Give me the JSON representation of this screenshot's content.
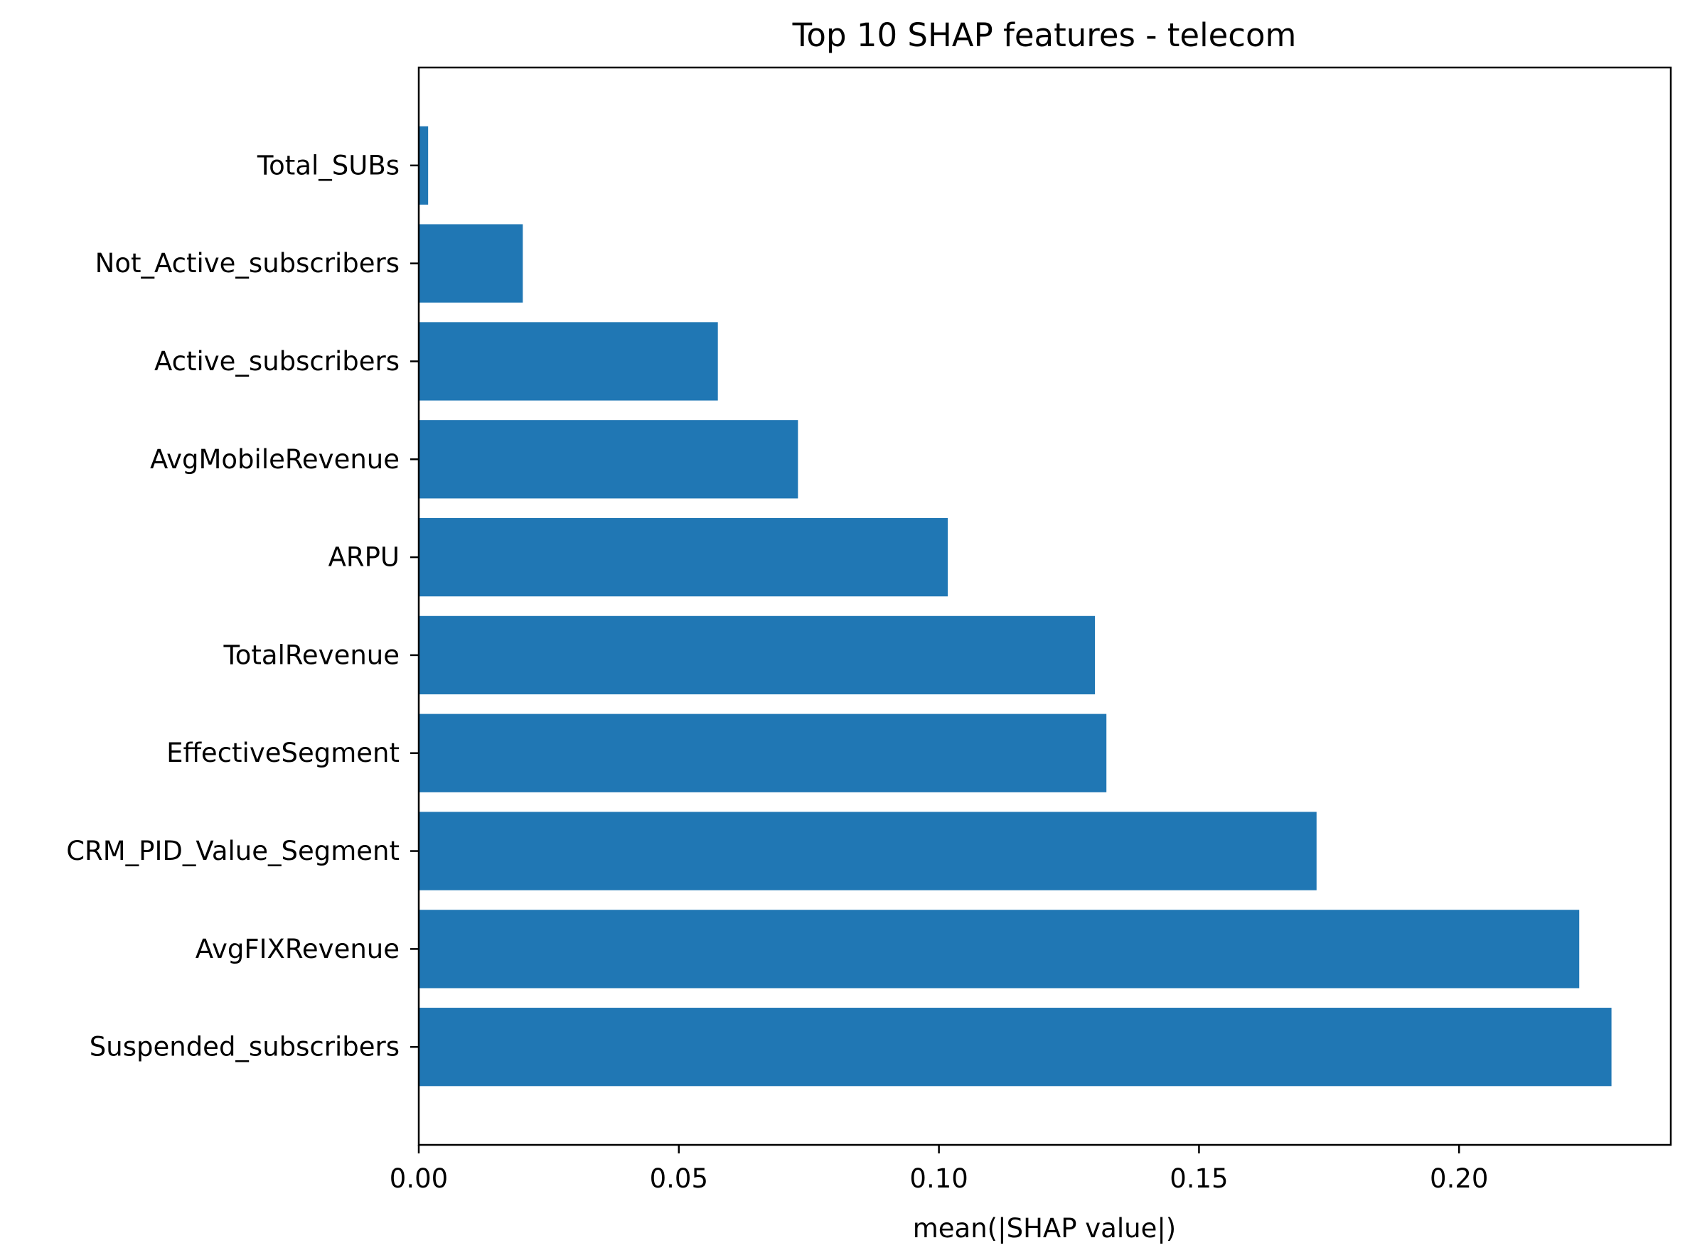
{
  "chart_data": {
    "type": "bar",
    "orientation": "horizontal",
    "title": "Top 10 SHAP features - telecom",
    "xlabel": "mean(|SHAP value|)",
    "ylabel": "",
    "xlim": [
      0,
      0.2407
    ],
    "xticks": [
      0.0,
      0.05,
      0.1,
      0.15,
      0.2
    ],
    "xtick_labels": [
      "0.00",
      "0.05",
      "0.10",
      "0.15",
      "0.20"
    ],
    "grid": false,
    "legend": "none",
    "categories": [
      "Total_SUBs",
      "Not_Active_subscribers",
      "Active_subscribers",
      "AvgMobileRevenue",
      "ARPU",
      "TotalRevenue",
      "EffectiveSegment",
      "CRM_PID_Value_Segment",
      "AvgFIXRevenue",
      "Suspended_subscribers"
    ],
    "values": [
      0.0018,
      0.02,
      0.0575,
      0.0729,
      0.1017,
      0.13,
      0.1322,
      0.1726,
      0.2231,
      0.2293
    ],
    "bar_color": "#2077b4"
  }
}
